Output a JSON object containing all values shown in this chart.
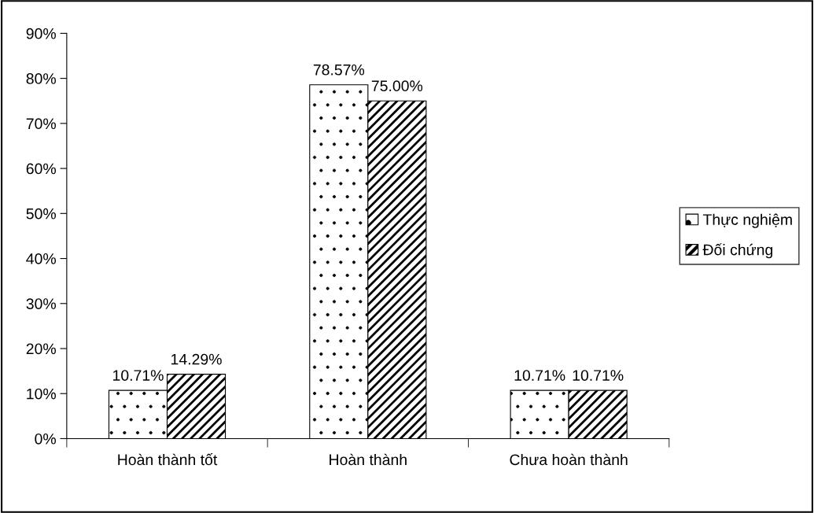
{
  "chart_data": {
    "type": "bar",
    "categories": [
      "Hoàn thành tốt",
      "Hoàn thành",
      "Chưa hoàn thành"
    ],
    "series": [
      {
        "name": "Thực nghiệm",
        "color": "#000000",
        "values": [
          10.71,
          78.57,
          10.71
        ],
        "value_labels": [
          "10.71%",
          "78.57%",
          "10.71%"
        ]
      },
      {
        "name": "Đối chứng",
        "color": "#000000",
        "values": [
          14.29,
          75.0,
          10.71
        ],
        "value_labels": [
          "14.29%",
          "75.00%",
          "10.71%"
        ]
      }
    ],
    "ylim": [
      0,
      90
    ],
    "yticks": [
      {
        "value": 0,
        "label": "0%"
      },
      {
        "value": 10,
        "label": "10%"
      },
      {
        "value": 20,
        "label": "20%"
      },
      {
        "value": 30,
        "label": "30%"
      },
      {
        "value": 40,
        "label": "40%"
      },
      {
        "value": 50,
        "label": "50%"
      },
      {
        "value": 60,
        "label": "60%"
      },
      {
        "value": 70,
        "label": "70%"
      },
      {
        "value": 80,
        "label": "80%"
      },
      {
        "value": 90,
        "label": "90%"
      }
    ],
    "grid": false,
    "legend": "right"
  }
}
